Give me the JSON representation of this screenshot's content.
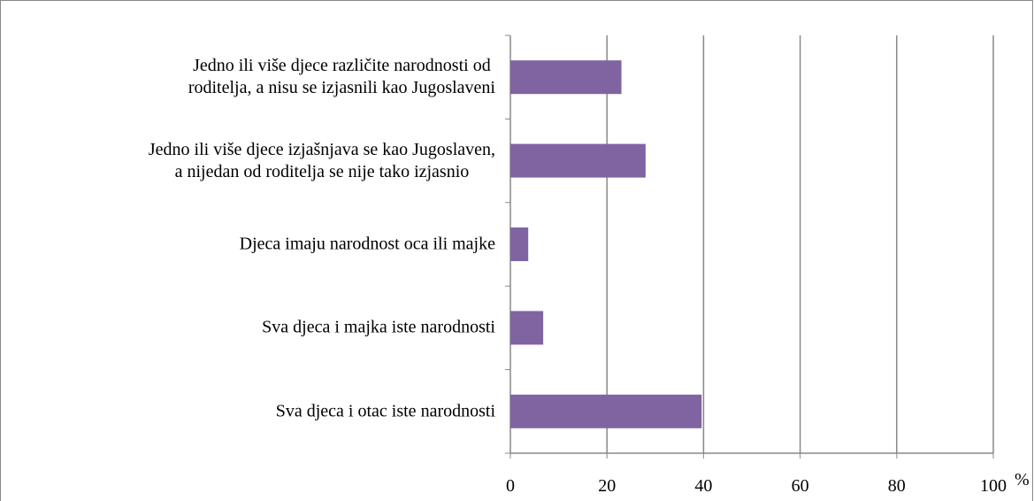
{
  "chart_data": {
    "type": "barh",
    "categories": [
      "Jedno ili više djece različite narodnosti od\nroditelja, a nisu se izjasnili kao Jugoslaveni",
      "Jedno ili više djece izjašnjava se kao Jugoslaven,\na nijedan od roditelja se nije tako izjasnio",
      "Djeca imaju narodnost oca ili majke",
      "Sva djeca i majka iste narodnosti",
      "Sva djeca i otac iste narodnosti"
    ],
    "values": [
      23,
      28,
      3.7,
      6.8,
      39.6
    ],
    "color": "#8064a2",
    "xlabel": "%",
    "xlim": [
      0,
      100
    ],
    "xticks": [
      0,
      20,
      40,
      60,
      80,
      100
    ],
    "grid": true
  }
}
